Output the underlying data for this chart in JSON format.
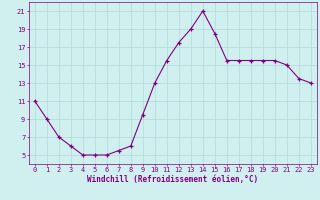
{
  "hours": [
    0,
    1,
    2,
    3,
    4,
    5,
    6,
    7,
    8,
    9,
    10,
    11,
    12,
    13,
    14,
    15,
    16,
    17,
    18,
    19,
    20,
    21,
    22,
    23
  ],
  "windchill": [
    11,
    9,
    7,
    6,
    5,
    5,
    5,
    5.5,
    6,
    9.5,
    13,
    15.5,
    17.5,
    19,
    21,
    18.5,
    15.5,
    15.5,
    15.5,
    15.5,
    15.5,
    15,
    13.5,
    13
  ],
  "line_color": "#800080",
  "marker": "+",
  "background_color": "#d0f0f0",
  "grid_color": "#b0d8d8",
  "xlabel": "Windchill (Refroidissement éolien,°C)",
  "ytick_labels": [
    "5",
    "7",
    "9",
    "11",
    "13",
    "15",
    "17",
    "19",
    "21"
  ],
  "ytick_values": [
    5,
    7,
    9,
    11,
    13,
    15,
    17,
    19,
    21
  ],
  "ylim": [
    4,
    22
  ],
  "xlim": [
    -0.5,
    23.5
  ],
  "xtick_values": [
    0,
    1,
    2,
    3,
    4,
    5,
    6,
    7,
    8,
    9,
    10,
    11,
    12,
    13,
    14,
    15,
    16,
    17,
    18,
    19,
    20,
    21,
    22,
    23
  ],
  "tick_color": "#800080",
  "tick_fontsize": 5.0,
  "xlabel_fontsize": 5.5,
  "figsize": [
    3.2,
    2.0
  ],
  "dpi": 100
}
